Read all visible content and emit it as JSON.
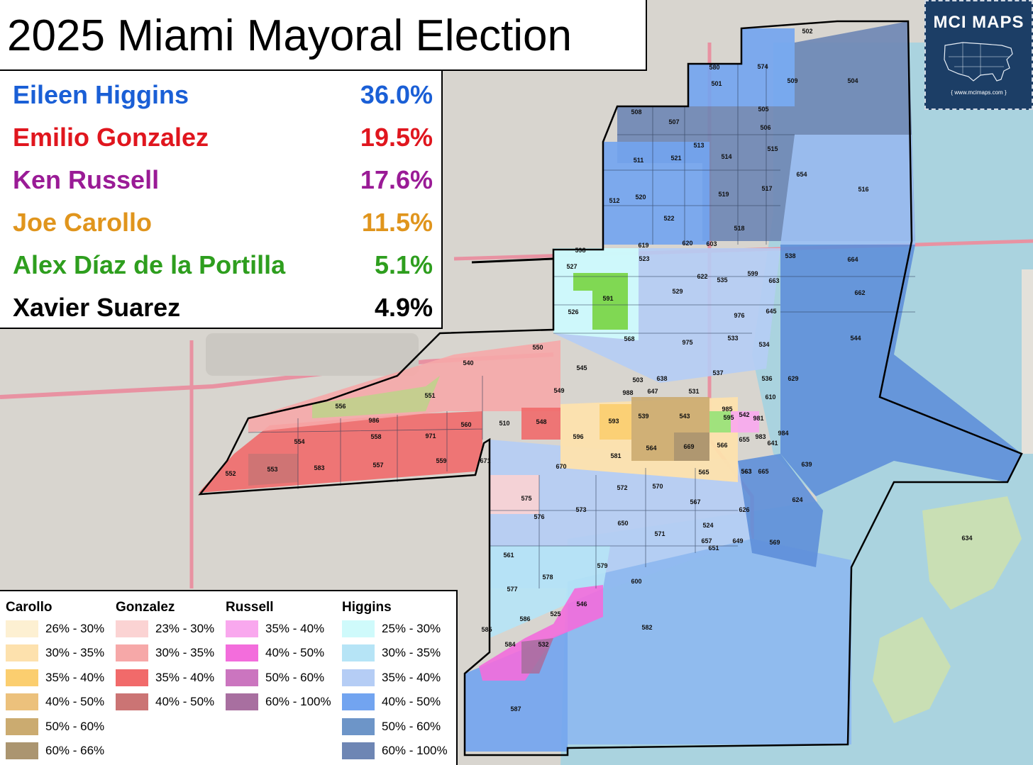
{
  "title": "2025 Miami Mayoral Election",
  "results": [
    {
      "name": "Eileen Higgins",
      "pct": "36.0%",
      "color": "#1a5fd6"
    },
    {
      "name": "Emilio Gonzalez",
      "pct": "19.5%",
      "color": "#e0161e"
    },
    {
      "name": "Ken Russell",
      "pct": "17.6%",
      "color": "#9a1b96"
    },
    {
      "name": "Joe Carollo",
      "pct": "11.5%",
      "color": "#e0951d"
    },
    {
      "name": "Alex Díaz de la Portilla",
      "pct": "5.1%",
      "color": "#2e9e1e"
    },
    {
      "name": "Xavier Suarez",
      "pct": "4.9%",
      "color": "#000000"
    }
  ],
  "logo": {
    "title": "MCI MAPS",
    "url": "{ www.mcimaps.com }"
  },
  "legend": [
    {
      "candidate": "Carollo",
      "items": [
        {
          "label": "26% - 30%",
          "color": "#fdf0d2"
        },
        {
          "label": "30% - 35%",
          "color": "#fde1ad"
        },
        {
          "label": "35% - 40%",
          "color": "#fbce6f"
        },
        {
          "label": "40% - 50%",
          "color": "#ecc17c"
        },
        {
          "label": "50% - 60%",
          "color": "#cbab70"
        },
        {
          "label": "60% - 66%",
          "color": "#ab9570"
        }
      ]
    },
    {
      "candidate": "Gonzalez",
      "items": [
        {
          "label": "23% - 30%",
          "color": "#fbd3d3"
        },
        {
          "label": "30% - 35%",
          "color": "#f6a8a8"
        },
        {
          "label": "35% - 40%",
          "color": "#f16a6a"
        },
        {
          "label": "40% - 50%",
          "color": "#cb7474"
        }
      ]
    },
    {
      "candidate": "Russell",
      "items": [
        {
          "label": "35% - 40%",
          "color": "#f9a8ee"
        },
        {
          "label": "40% - 50%",
          "color": "#f36ddc"
        },
        {
          "label": "50% - 60%",
          "color": "#cb75bf"
        },
        {
          "label": "60% - 100%",
          "color": "#a86fa0"
        }
      ]
    },
    {
      "candidate": "Higgins",
      "items": [
        {
          "label": "25% - 30%",
          "color": "#cffafb"
        },
        {
          "label": "30% - 35%",
          "color": "#b6e4f6"
        },
        {
          "label": "35% - 40%",
          "color": "#b5cdf5"
        },
        {
          "label": "40% - 50%",
          "color": "#72a4f0"
        },
        {
          "label": "50% - 60%",
          "color": "#6d95c8"
        },
        {
          "label": "60% - 100%",
          "color": "#6e86b4"
        }
      ]
    }
  ],
  "precinct_labels": [
    "502",
    "580",
    "574",
    "501",
    "509",
    "504",
    "508",
    "507",
    "505",
    "506",
    "513",
    "515",
    "511",
    "521",
    "514",
    "654",
    "516",
    "520",
    "519",
    "517",
    "512",
    "522",
    "518",
    "619",
    "620",
    "603",
    "598",
    "523",
    "527",
    "622",
    "535",
    "599",
    "538",
    "664",
    "591",
    "529",
    "563",
    "663",
    "662",
    "526",
    "976",
    "645",
    "568",
    "975",
    "533",
    "534",
    "544",
    "550",
    "540",
    "545",
    "537",
    "536",
    "629",
    "549",
    "503",
    "638",
    "647",
    "531",
    "610",
    "988",
    "551",
    "556",
    "985",
    "542",
    "986",
    "539",
    "543",
    "595",
    "981",
    "984",
    "558",
    "593",
    "971",
    "560",
    "510",
    "548",
    "596",
    "554",
    "655",
    "983",
    "559",
    "564",
    "669",
    "566",
    "641",
    "557",
    "581",
    "552",
    "553",
    "583",
    "671",
    "670",
    "565",
    "563",
    "665",
    "639",
    "575",
    "572",
    "570",
    "567",
    "573",
    "524",
    "624",
    "576",
    "650",
    "571",
    "649",
    "626",
    "657",
    "651",
    "569",
    "561",
    "578",
    "579",
    "600",
    "634",
    "577",
    "546",
    "525",
    "586",
    "532",
    "582",
    "585",
    "584",
    "587"
  ]
}
